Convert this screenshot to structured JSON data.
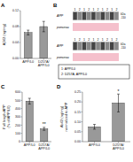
{
  "chart_data": [
    {
      "type": "bar",
      "title": "A",
      "categories": [
        "APP/L0",
        "D257A/\nAPP/L0"
      ],
      "values": [
        0.065,
        0.08
      ],
      "errors": [
        0.006,
        0.013
      ],
      "ylabel": "Aβ42 (ng/mg)",
      "ylim": [
        0,
        0.12
      ],
      "yticks": [
        {
          "value": 0,
          "label": "0.00"
        },
        0.04,
        0.08,
        0.12
      ],
      "color": "#999999"
    },
    {
      "type": "blot",
      "title": "B",
      "categories": [
        "1",
        "2",
        "1",
        "2",
        "1",
        "2",
        "1",
        "2",
        "1",
        "2"
      ],
      "annotations": [
        "APP",
        "ponceau",
        "kDa\n-110",
        "1: APP/L0",
        "2: D257A; APP/L0"
      ],
      "colors": [
        "#444444",
        "#888888"
      ],
      "color": "#f5c0cc"
    },
    {
      "type": "bar",
      "title": "C",
      "categories": [
        "APP/L0",
        "D257A/\nAPP/L0"
      ],
      "values": [
        490,
        155
      ],
      "errors": [
        35,
        18
      ],
      "ylabel": "Full length APP\n(% of APP/L0)",
      "ylim": [
        0,
        600
      ],
      "yticks": [
        0,
        100,
        200,
        300,
        400,
        500,
        600
      ],
      "color": "#999999",
      "annotations": [
        "**"
      ]
    },
    {
      "type": "bar",
      "title": "D",
      "categories": [
        "APP/L0",
        "D257A/\nAPP/L0"
      ],
      "values": [
        0.075,
        0.195
      ],
      "errors": [
        0.012,
        0.045
      ],
      "ylabel": "Ab42 (ng/mg)\nnormalized to APP",
      "ylim": [
        0,
        0.25
      ],
      "yticks": [
        {
          "value": 0,
          "label": "0.00"
        },
        0.05,
        {
          "value": 0.1,
          "label": "0.10"
        },
        0.15,
        {
          "value": 0.2,
          "label": "0.20"
        },
        0.25
      ],
      "color": "#999999",
      "annotations": [
        "*"
      ]
    }
  ]
}
